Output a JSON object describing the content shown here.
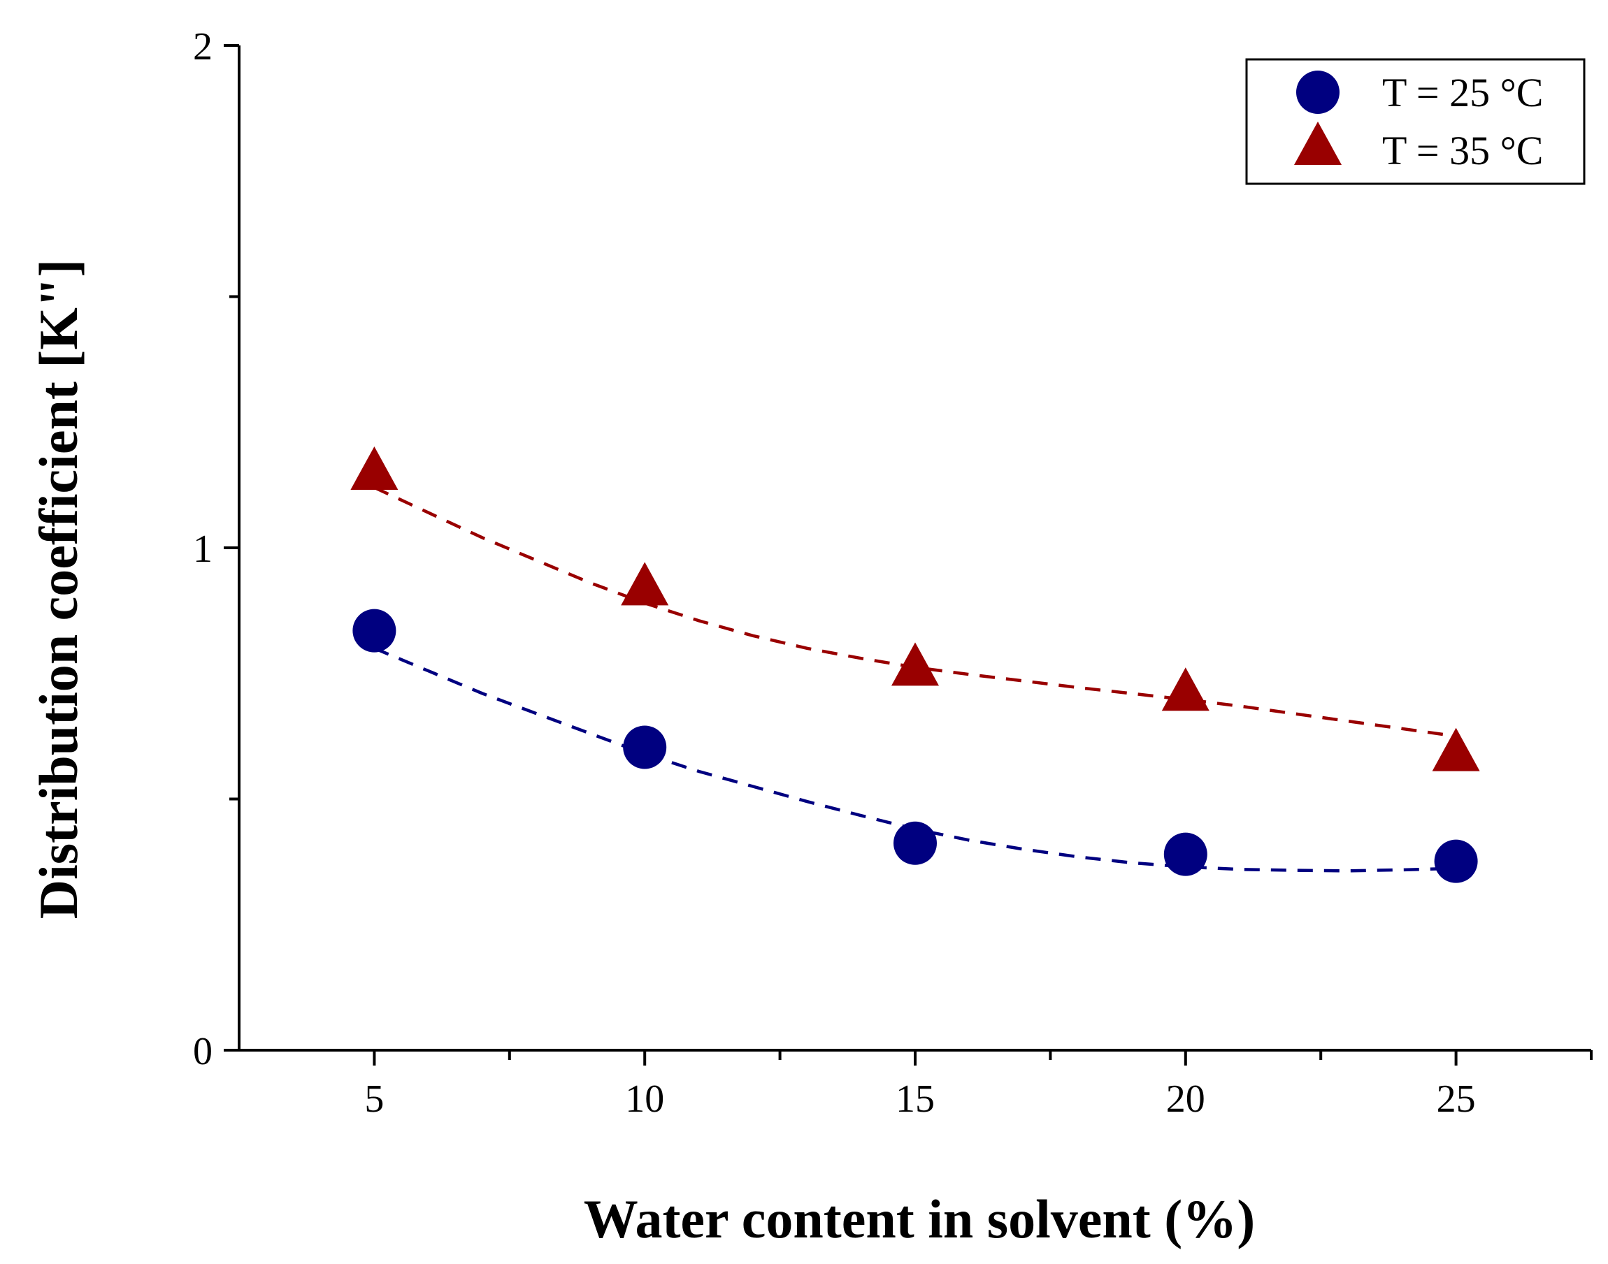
{
  "chart_data": {
    "type": "scatter",
    "title": "",
    "xlabel": "Water content in solvent (%)",
    "ylabel": "Distribution coefficient [K\"]",
    "xlim": [
      2.5,
      27.5
    ],
    "ylim": [
      0,
      2
    ],
    "x_ticks": [
      5,
      10,
      15,
      20,
      25
    ],
    "y_ticks": [
      0,
      1,
      2
    ],
    "x_minor_ticks": [
      7.5,
      12.5,
      17.5,
      22.5,
      27.5
    ],
    "y_minor_ticks": [
      0.5,
      1.5
    ],
    "legend_position": "top-right",
    "series": [
      {
        "name": "T = 25 °C",
        "marker": "circle",
        "color": "#000080",
        "x": [
          5,
          10,
          15,
          20,
          25
        ],
        "y": [
          0.835,
          0.603,
          0.412,
          0.39,
          0.376
        ],
        "fit": [
          [
            5,
            0.8
          ],
          [
            6,
            0.755
          ],
          [
            7,
            0.71
          ],
          [
            8,
            0.67
          ],
          [
            9,
            0.63
          ],
          [
            10,
            0.59
          ],
          [
            11,
            0.555
          ],
          [
            12,
            0.525
          ],
          [
            13,
            0.495
          ],
          [
            14,
            0.467
          ],
          [
            15,
            0.44
          ],
          [
            16,
            0.418
          ],
          [
            17,
            0.4
          ],
          [
            18,
            0.385
          ],
          [
            19,
            0.373
          ],
          [
            20,
            0.365
          ],
          [
            21,
            0.36
          ],
          [
            22,
            0.358
          ],
          [
            23,
            0.357
          ],
          [
            24,
            0.359
          ],
          [
            25,
            0.362
          ]
        ]
      },
      {
        "name": "T = 35 °C",
        "marker": "triangle",
        "color": "#990000",
        "x": [
          5,
          10,
          15,
          20,
          25
        ],
        "y": [
          1.15,
          0.92,
          0.76,
          0.71,
          0.59
        ],
        "fit": [
          [
            5,
            1.12
          ],
          [
            6,
            1.07
          ],
          [
            7,
            1.02
          ],
          [
            8,
            0.975
          ],
          [
            9,
            0.93
          ],
          [
            10,
            0.89
          ],
          [
            11,
            0.855
          ],
          [
            12,
            0.825
          ],
          [
            13,
            0.8
          ],
          [
            14,
            0.78
          ],
          [
            15,
            0.762
          ],
          [
            16,
            0.748
          ],
          [
            17,
            0.735
          ],
          [
            18,
            0.722
          ],
          [
            19,
            0.71
          ],
          [
            20,
            0.698
          ],
          [
            21,
            0.685
          ],
          [
            22,
            0.67
          ],
          [
            23,
            0.655
          ],
          [
            24,
            0.64
          ],
          [
            25,
            0.625
          ]
        ]
      }
    ]
  }
}
